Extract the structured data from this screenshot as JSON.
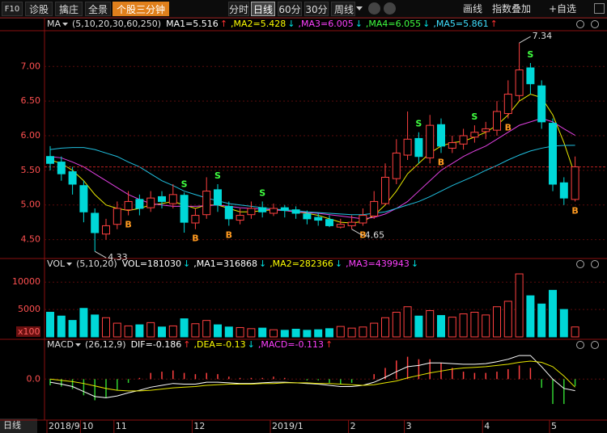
{
  "toolbar": {
    "left": [
      "F10",
      "诊股",
      "擒庄",
      "全景"
    ],
    "active_tool": "个股三分钟",
    "periods": [
      "分时",
      "日线",
      "60分",
      "30分",
      "周线"
    ],
    "right": [
      "画线",
      "指数叠加",
      "+自选"
    ],
    "bottom_button": "日线"
  },
  "chart_data": [
    {
      "type": "candlestick",
      "header": {
        "title": "MA",
        "params": "(5,10,20,30,60,250)",
        "items": [
          {
            "text": "MA1=5.516",
            "trend": "↑",
            "color": "#ffffff",
            "arrow_color": "#ff3030"
          },
          {
            "text": ",MA2=5.428",
            "trend": "↓",
            "color": "#ffff00",
            "arrow_color": "#00e0e0"
          },
          {
            "text": ",MA3=6.005",
            "trend": "↓",
            "color": "#ff40ff",
            "arrow_color": "#00e0e0"
          },
          {
            "text": ",MA4=6.055",
            "trend": "↓",
            "color": "#40ff40",
            "arrow_color": "#00e0e0"
          },
          {
            "text": ",MA5=5.861",
            "trend": "↑",
            "color": "#40e0ff",
            "arrow_color": "#ff3030"
          }
        ]
      },
      "categories": [
        "2018/9",
        null,
        null,
        "10",
        null,
        null,
        "11",
        null,
        null,
        null,
        null,
        null,
        null,
        "12",
        null,
        null,
        null,
        null,
        null,
        null,
        "2019/1",
        null,
        null,
        null,
        null,
        null,
        null,
        "2",
        null,
        null,
        null,
        null,
        "3",
        null,
        null,
        null,
        null,
        null,
        null,
        "4",
        null,
        null,
        null,
        null,
        null,
        "5",
        null,
        null
      ],
      "candles": {
        "open": [
          5.7,
          5.62,
          5.48,
          5.28,
          4.88,
          4.58,
          4.72,
          4.93,
          5.08,
          4.96,
          5.12,
          5.02,
          5.14,
          4.74,
          4.86,
          5.22,
          4.98,
          4.78,
          4.86,
          4.96,
          4.88,
          4.96,
          4.93,
          4.87,
          4.82,
          4.79,
          4.68,
          4.7,
          4.74,
          4.84,
          5.02,
          5.38,
          5.72,
          5.96,
          5.68,
          6.16,
          5.82,
          5.88,
          5.98,
          6.06,
          6.08,
          6.32,
          6.58,
          6.98,
          6.72,
          6.18,
          5.32,
          5.08
        ],
        "high": [
          5.85,
          5.7,
          5.55,
          5.35,
          4.95,
          4.8,
          5.05,
          5.2,
          5.15,
          5.2,
          5.2,
          5.3,
          5.18,
          4.95,
          5.4,
          5.3,
          5.05,
          4.95,
          5.05,
          5.05,
          5.02,
          5.0,
          4.98,
          4.92,
          4.88,
          4.85,
          4.8,
          4.85,
          4.95,
          5.2,
          5.6,
          5.95,
          6.35,
          6.05,
          6.3,
          6.25,
          6.0,
          6.1,
          6.15,
          6.2,
          6.5,
          6.8,
          7.34,
          7.05,
          6.8,
          6.25,
          5.4,
          5.7
        ],
        "low": [
          5.5,
          5.35,
          5.15,
          4.75,
          4.33,
          4.5,
          4.65,
          4.85,
          4.85,
          4.9,
          4.95,
          4.95,
          4.6,
          4.65,
          4.8,
          4.9,
          4.7,
          4.72,
          4.8,
          4.82,
          4.84,
          4.82,
          4.8,
          4.72,
          4.7,
          4.68,
          4.66,
          4.65,
          4.7,
          4.8,
          5.0,
          5.3,
          5.65,
          5.6,
          5.6,
          5.75,
          5.75,
          5.8,
          5.9,
          5.95,
          6.0,
          6.25,
          6.5,
          6.6,
          6.1,
          5.2,
          5.0,
          5.05
        ],
        "close": [
          5.6,
          5.45,
          5.3,
          4.9,
          4.6,
          4.7,
          4.95,
          5.05,
          4.95,
          5.1,
          5.05,
          5.15,
          4.75,
          4.85,
          5.2,
          5.0,
          4.8,
          4.85,
          4.95,
          4.9,
          4.95,
          4.92,
          4.88,
          4.8,
          4.78,
          4.7,
          4.72,
          4.75,
          4.85,
          5.05,
          5.4,
          5.75,
          5.95,
          5.7,
          6.15,
          5.85,
          5.9,
          6.0,
          6.05,
          6.1,
          6.35,
          6.6,
          6.95,
          6.75,
          6.2,
          5.3,
          5.1,
          5.55
        ]
      },
      "up_color": "#ff4040",
      "down_color": "#00d8d8",
      "lines": [
        {
          "color": "#e8e800",
          "values": [
            5.65,
            5.6,
            5.5,
            5.35,
            5.15,
            5.0,
            4.95,
            4.92,
            4.95,
            5.0,
            5.02,
            5.05,
            5.0,
            4.95,
            5.0,
            5.0,
            4.95,
            4.9,
            4.9,
            4.92,
            4.93,
            4.92,
            4.9,
            4.88,
            4.85,
            4.8,
            4.75,
            4.74,
            4.76,
            4.85,
            5.0,
            5.2,
            5.45,
            5.6,
            5.75,
            5.85,
            5.9,
            5.92,
            5.98,
            6.05,
            6.15,
            6.3,
            6.5,
            6.6,
            6.55,
            6.3,
            5.9,
            5.428
          ]
        },
        {
          "color": "#e040e0",
          "values": [
            5.7,
            5.68,
            5.62,
            5.55,
            5.45,
            5.35,
            5.25,
            5.15,
            5.08,
            5.02,
            5.0,
            4.98,
            4.98,
            4.98,
            4.99,
            5.0,
            4.98,
            4.96,
            4.95,
            4.94,
            4.93,
            4.92,
            4.9,
            4.89,
            4.88,
            4.86,
            4.84,
            4.82,
            4.8,
            4.82,
            4.87,
            4.95,
            5.05,
            5.2,
            5.35,
            5.5,
            5.6,
            5.7,
            5.78,
            5.85,
            5.95,
            6.05,
            6.15,
            6.2,
            6.25,
            6.2,
            6.1,
            6.005
          ]
        },
        {
          "color": "#20c0e0",
          "values": [
            5.8,
            5.82,
            5.83,
            5.83,
            5.8,
            5.75,
            5.7,
            5.62,
            5.55,
            5.45,
            5.35,
            5.28,
            5.2,
            5.15,
            5.1,
            5.06,
            5.02,
            5.0,
            4.98,
            4.96,
            4.94,
            4.93,
            4.92,
            4.9,
            4.89,
            4.88,
            4.87,
            4.86,
            4.86,
            4.88,
            4.9,
            4.95,
            5.0,
            5.05,
            5.12,
            5.2,
            5.28,
            5.35,
            5.42,
            5.5,
            5.57,
            5.65,
            5.72,
            5.78,
            5.82,
            5.85,
            5.86,
            5.861
          ]
        }
      ],
      "signals": [
        null,
        null,
        null,
        null,
        null,
        null,
        null,
        "B",
        null,
        null,
        null,
        null,
        "S",
        "B",
        null,
        "S",
        "B",
        null,
        null,
        "S",
        null,
        null,
        null,
        null,
        null,
        null,
        null,
        null,
        "B",
        null,
        null,
        null,
        null,
        "S",
        null,
        "B",
        null,
        null,
        "S",
        null,
        null,
        "B",
        null,
        "S",
        null,
        null,
        null,
        "B"
      ],
      "annotations": [
        4.33,
        7.34,
        4.65
      ],
      "ylim": [
        4.25,
        7.47
      ],
      "yticks": [
        {
          "value": 4.5,
          "label": "4.50"
        },
        {
          "value": 5,
          "label": "5.00"
        },
        {
          "value": 5.5,
          "label": "5.50"
        },
        {
          "value": 6,
          "label": "6.00"
        },
        {
          "value": 6.5,
          "label": "6.50"
        },
        {
          "value": 7,
          "label": "7.00"
        }
      ]
    },
    {
      "type": "bar",
      "header": {
        "title": "VOL",
        "params": "(5,10,20)",
        "items": [
          {
            "text": "VOL=181030",
            "trend": "↓",
            "color": "#ffffff",
            "arrow_color": "#00e0e0"
          },
          {
            "text": ",MA1=316868",
            "trend": "↓",
            "color": "#ffffff",
            "arrow_color": "#00e0e0"
          },
          {
            "text": ",MA2=282366",
            "trend": "↓",
            "color": "#ffff00",
            "arrow_color": "#00e0e0"
          },
          {
            "text": ",MA3=439943",
            "trend": "↓",
            "color": "#ff40ff",
            "arrow_color": "#00e0e0"
          }
        ]
      },
      "values": [
        4500,
        3800,
        3000,
        5200,
        4000,
        3500,
        2500,
        2000,
        2200,
        2600,
        1800,
        2000,
        3300,
        2400,
        3000,
        2200,
        1800,
        1700,
        1500,
        1600,
        1300,
        1200,
        1400,
        1200,
        1300,
        1500,
        1900,
        1600,
        1800,
        2500,
        3500,
        4500,
        5500,
        3800,
        4800,
        3900,
        3600,
        4200,
        4500,
        4000,
        5500,
        6500,
        11500,
        7500,
        6000,
        8500,
        5000,
        1810
      ],
      "unit_label": "x100",
      "ylim": [
        0,
        11800
      ],
      "yticks": [
        5000,
        10000
      ]
    },
    {
      "type": "macd",
      "header": {
        "title": "MACD",
        "params": "(26,12,9)",
        "items": [
          {
            "text": "DIF=-0.186",
            "trend": "↑",
            "color": "#ffffff",
            "arrow_color": "#ff3030"
          },
          {
            "text": ",DEA=-0.13",
            "trend": "↓",
            "color": "#ffff00",
            "arrow_color": "#00e0e0"
          },
          {
            "text": ",MACD=-0.113",
            "trend": "↑",
            "color": "#ff40ff",
            "arrow_color": "#ff3030"
          }
        ]
      },
      "values": [
        -0.1,
        -0.12,
        -0.16,
        -0.26,
        -0.34,
        -0.3,
        -0.18,
        -0.06,
        0.02,
        0.1,
        0.12,
        0.14,
        0.1,
        0.08,
        0.1,
        0.08,
        0.04,
        0.02,
        0.02,
        0.02,
        0.04,
        0.02,
        0,
        -0.02,
        -0.02,
        -0.06,
        -0.08,
        -0.06,
        0,
        0.08,
        0.18,
        0.3,
        0.36,
        0.32,
        0.32,
        0.26,
        0.18,
        0.12,
        0.1,
        0.1,
        0.12,
        0.16,
        0.22,
        0.18,
        -0.14,
        -0.4,
        -0.4,
        -0.113
      ],
      "up_color": "#ff4040",
      "down_color": "#30d030",
      "lines": [
        {
          "color": "#ffffff",
          "values": [
            -0.05,
            -0.08,
            -0.12,
            -0.2,
            -0.28,
            -0.3,
            -0.27,
            -0.22,
            -0.18,
            -0.13,
            -0.1,
            -0.07,
            -0.08,
            -0.08,
            -0.05,
            -0.05,
            -0.06,
            -0.07,
            -0.07,
            -0.06,
            -0.05,
            -0.05,
            -0.06,
            -0.07,
            -0.08,
            -0.1,
            -0.12,
            -0.12,
            -0.1,
            -0.05,
            0.03,
            0.12,
            0.2,
            0.22,
            0.26,
            0.26,
            0.25,
            0.24,
            0.24,
            0.25,
            0.28,
            0.32,
            0.38,
            0.38,
            0.2,
            0.0,
            -0.15,
            -0.186
          ]
        },
        {
          "color": "#e8e800",
          "values": [
            0.0,
            -0.02,
            -0.04,
            -0.07,
            -0.11,
            -0.15,
            -0.18,
            -0.19,
            -0.19,
            -0.18,
            -0.16,
            -0.14,
            -0.13,
            -0.12,
            -0.1,
            -0.09,
            -0.08,
            -0.08,
            -0.08,
            -0.07,
            -0.07,
            -0.06,
            -0.06,
            -0.06,
            -0.07,
            -0.07,
            -0.08,
            -0.09,
            -0.1,
            -0.09,
            -0.06,
            -0.03,
            0.02,
            0.06,
            0.1,
            0.13,
            0.16,
            0.18,
            0.19,
            0.2,
            0.22,
            0.24,
            0.27,
            0.29,
            0.27,
            0.2,
            0.05,
            -0.13
          ]
        }
      ],
      "ylim": [
        -0.62,
        0.42
      ],
      "yticks": [
        {
          "value": 0,
          "label": "0.0"
        }
      ]
    }
  ]
}
